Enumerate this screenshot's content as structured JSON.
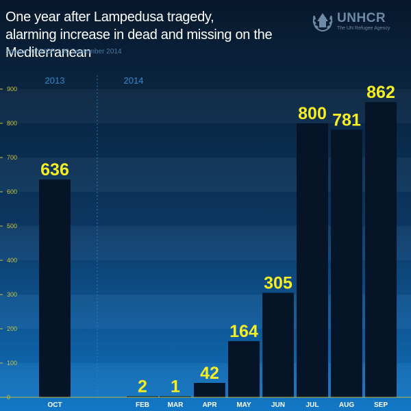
{
  "header": {
    "title_line1": "One year after Lampedusa tragedy,",
    "title_line2": "alarming increase in dead and missing on the Mediterranean",
    "source": "Source: UNHCR / 30 September 2014"
  },
  "logo": {
    "brand": "UNHCR",
    "tagline": "The UN Refugee Agency",
    "icon": "unhcr-emblem-icon"
  },
  "colors": {
    "bar": "#061427",
    "value_label": "#f6ef25",
    "y_tick": "#c9c43a",
    "year_label": "#2f8ad0"
  },
  "chart_data": {
    "type": "bar",
    "title": "One year after Lampedusa tragedy, alarming increase in dead and missing on the Mediterranean",
    "xlabel": "",
    "ylabel": "",
    "ylim": [
      0,
      900
    ],
    "yticks": [
      0,
      100,
      200,
      300,
      400,
      500,
      600,
      700,
      800,
      900
    ],
    "categories": [
      "OCT",
      "FEB",
      "MAR",
      "APR",
      "MAY",
      "JUN",
      "JUL",
      "AUG",
      "SEP"
    ],
    "values": [
      636,
      2,
      1,
      42,
      164,
      305,
      800,
      781,
      862
    ],
    "year_groups": [
      {
        "label": "2013",
        "categories": [
          "OCT"
        ]
      },
      {
        "label": "2014",
        "categories": [
          "FEB",
          "MAR",
          "APR",
          "MAY",
          "JUN",
          "JUL",
          "AUG",
          "SEP"
        ]
      }
    ],
    "grid": false,
    "legend": "none"
  }
}
